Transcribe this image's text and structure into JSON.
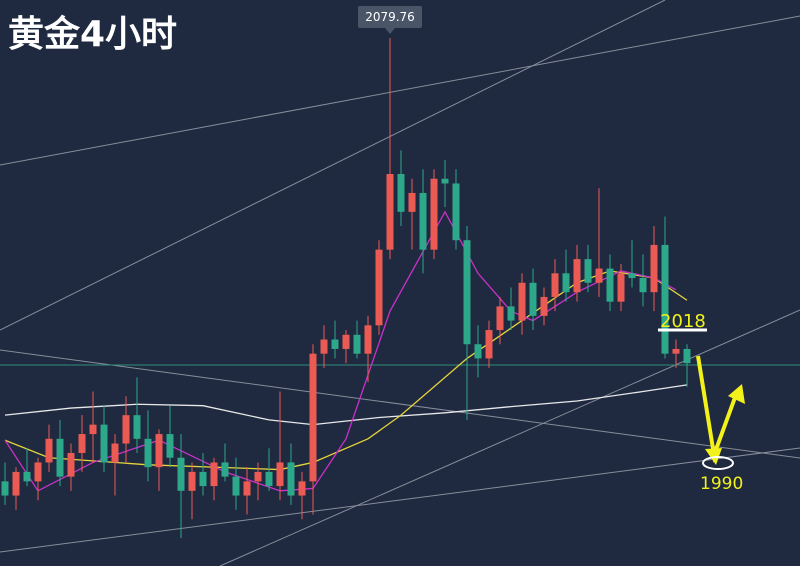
{
  "chart_data": {
    "type": "candlestick",
    "title": "黄金4小时",
    "ylim": [
      1968.1,
      2087.8
    ],
    "up_color": "#ec5b53",
    "down_color": "#2ea88a",
    "ohlc": [
      [
        1986,
        1990,
        1981,
        1983
      ],
      [
        1983,
        1989,
        1980,
        1988
      ],
      [
        1988,
        1993,
        1985,
        1986
      ],
      [
        1986,
        1991,
        1982,
        1990
      ],
      [
        1990,
        1998,
        1988,
        1995
      ],
      [
        1995,
        1999,
        1985,
        1987
      ],
      [
        1987,
        1994,
        1984,
        1992
      ],
      [
        1992,
        2000,
        1988,
        1996
      ],
      [
        1996,
        2005,
        1990,
        1998
      ],
      [
        1998,
        2002,
        1988,
        1990
      ],
      [
        1990,
        1996,
        1983,
        1994
      ],
      [
        1994,
        2004,
        1990,
        2000
      ],
      [
        2000,
        2008,
        1992,
        1995
      ],
      [
        1995,
        2001,
        1986,
        1989
      ],
      [
        1989,
        1997,
        1984,
        1996
      ],
      [
        1996,
        2002,
        1989,
        1991
      ],
      [
        1991,
        1996,
        1974,
        1984
      ],
      [
        1984,
        1990,
        1978,
        1988
      ],
      [
        1988,
        1992,
        1983,
        1985
      ],
      [
        1985,
        1991,
        1982,
        1990
      ],
      [
        1990,
        1994,
        1986,
        1987
      ],
      [
        1987,
        1991,
        1980,
        1983
      ],
      [
        1983,
        1989,
        1979,
        1986
      ],
      [
        1986,
        1990,
        1982,
        1988
      ],
      [
        1988,
        1993,
        1984,
        1985
      ],
      [
        1985,
        2005,
        1982,
        1990
      ],
      [
        1990,
        1994,
        1981,
        1983
      ],
      [
        1983,
        1988,
        1978,
        1986
      ],
      [
        1986,
        2015,
        1979,
        2013
      ],
      [
        2013,
        2019,
        2010,
        2016
      ],
      [
        2016,
        2020,
        2012,
        2014
      ],
      [
        2014,
        2018,
        2011,
        2017
      ],
      [
        2017,
        2020,
        2012,
        2013
      ],
      [
        2013,
        2021,
        2007,
        2019
      ],
      [
        2019,
        2037,
        2017,
        2035
      ],
      [
        2035,
        2079.76,
        2033,
        2051
      ],
      [
        2051,
        2056,
        2040,
        2043
      ],
      [
        2043,
        2050,
        2035,
        2047
      ],
      [
        2047,
        2052,
        2030,
        2035
      ],
      [
        2035,
        2052,
        2033,
        2050
      ],
      [
        2050,
        2054,
        2044,
        2049
      ],
      [
        2049,
        2052,
        2035,
        2037
      ],
      [
        2037,
        2040,
        1999,
        2015
      ],
      [
        2015,
        2019,
        2008,
        2012
      ],
      [
        2012,
        2020,
        2010,
        2018
      ],
      [
        2018,
        2025,
        2015,
        2023
      ],
      [
        2023,
        2027,
        2018,
        2020
      ],
      [
        2020,
        2030,
        2017,
        2028
      ],
      [
        2028,
        2031,
        2018,
        2021
      ],
      [
        2021,
        2027,
        2019,
        2025
      ],
      [
        2025,
        2033,
        2022,
        2030
      ],
      [
        2030,
        2035,
        2024,
        2026
      ],
      [
        2026,
        2036,
        2024,
        2033
      ],
      [
        2033,
        2036,
        2026,
        2028
      ],
      [
        2028,
        2048,
        2025,
        2031
      ],
      [
        2031,
        2034,
        2022,
        2024
      ],
      [
        2024,
        2032,
        2022,
        2030
      ],
      [
        2030,
        2037,
        2027,
        2029
      ],
      [
        2029,
        2034,
        2023,
        2026
      ],
      [
        2026,
        2040,
        2022,
        2036
      ],
      [
        2036,
        2042,
        2012,
        2013
      ],
      [
        2013,
        2016,
        2010,
        2014
      ],
      [
        2014,
        2015,
        2006,
        2011
      ]
    ],
    "peak_label": "2079.76",
    "lines": [
      {
        "color": "#e8e8e8",
        "x": [
          0,
          6,
          12,
          18,
          24,
          28,
          34,
          40,
          46,
          52,
          58,
          62
        ],
        "values": [
          2000,
          2001.5,
          2002.3,
          2002,
          1999,
          1998,
          1999.5,
          2000.5,
          2001.8,
          2003,
          2005,
          2006.4
        ]
      },
      {
        "color": "#e6d43a",
        "x": [
          0,
          4,
          13,
          25,
          28,
          33,
          36,
          42,
          47,
          52,
          55,
          59,
          62
        ],
        "values": [
          1994.7,
          1991,
          1989.5,
          1988.5,
          1990,
          1995,
          2000,
          2012,
          2020,
          2028,
          2030.5,
          2029,
          2024.3
        ]
      },
      {
        "color": "#c931c9",
        "x": [
          0,
          3,
          8,
          14,
          20,
          25,
          28,
          31,
          35,
          40,
          43,
          46,
          48,
          52,
          56,
          59,
          61
        ],
        "values": [
          1994.7,
          1984,
          1990,
          1994.7,
          1988,
          1984,
          1984.5,
          1995,
          2022,
          2043,
          2030,
          2022,
          2020,
          2026,
          2030.5,
          2029,
          2026.5
        ]
      }
    ],
    "annotations": [
      {
        "text": "2018",
        "value": 2018
      },
      {
        "text": "1990",
        "value": 1990
      }
    ]
  }
}
